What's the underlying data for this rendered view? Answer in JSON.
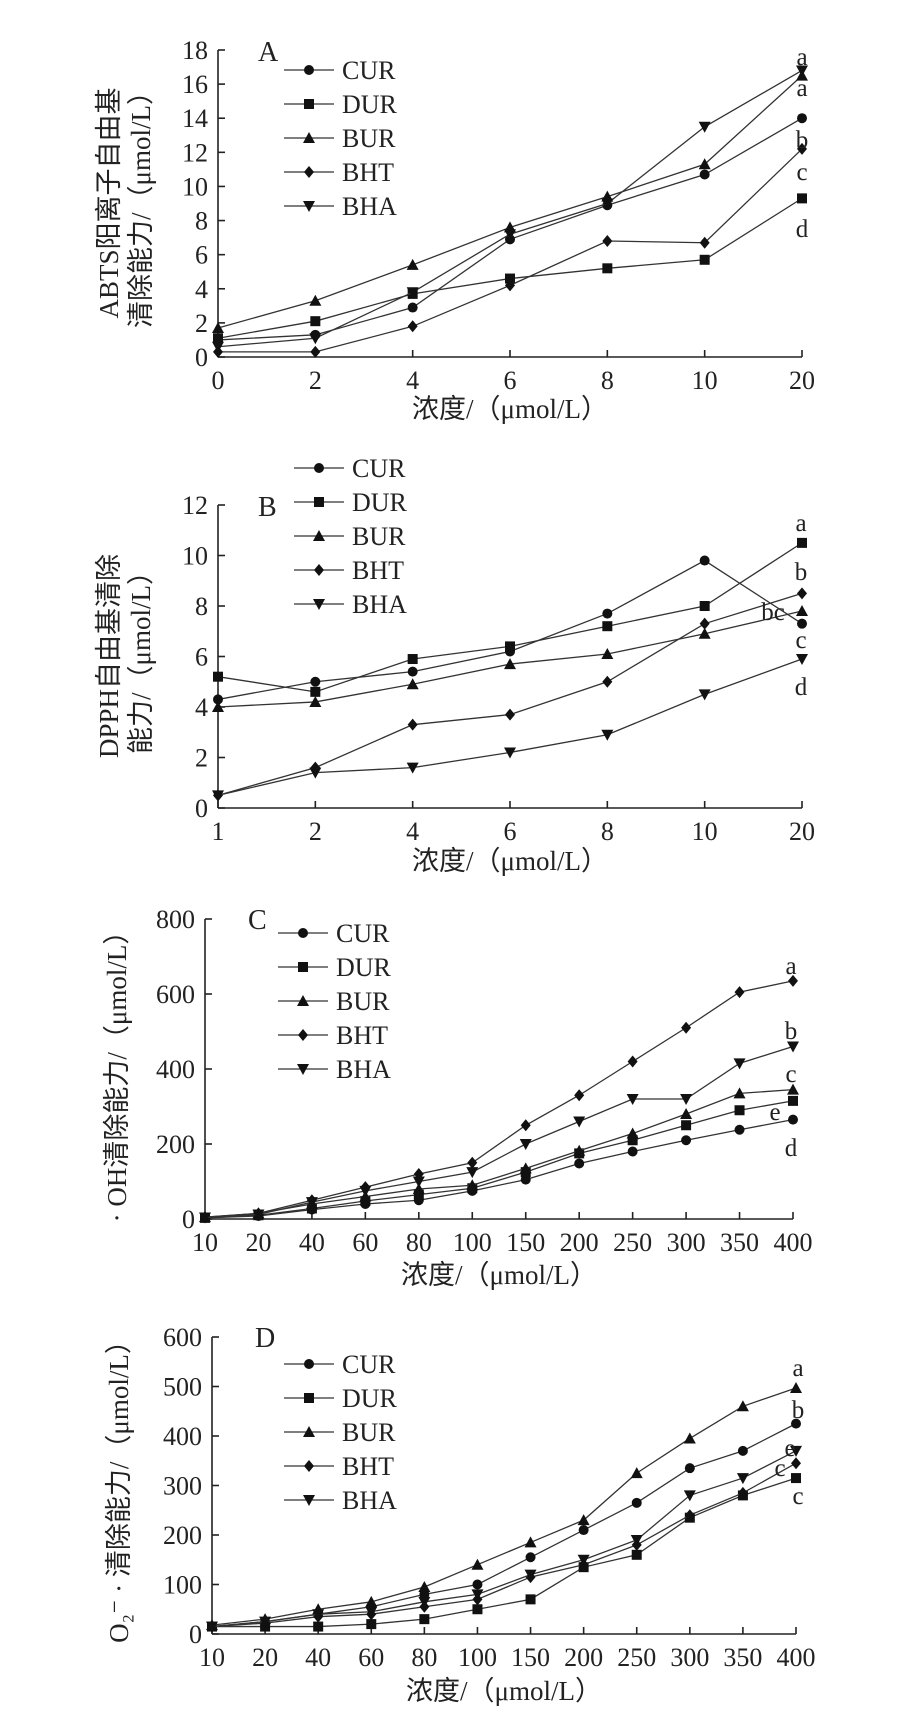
{
  "chart_data": [
    {
      "type": "line",
      "panel_label": "A",
      "categories": [
        "0",
        "2",
        "4",
        "6",
        "8",
        "10",
        "20"
      ],
      "ylim": [
        0,
        18
      ],
      "yticks": [
        0,
        2,
        4,
        6,
        8,
        10,
        12,
        14,
        16,
        18
      ],
      "xlabel": "浓度/（μmol/L）",
      "ylabel_line1": "ABTS阳离子自由基",
      "ylabel_line2": "清除能力/（μmol/L）",
      "legend": [
        "CUR",
        "DUR",
        "BUR",
        "BHT",
        "BHA"
      ],
      "series": [
        {
          "name": "CUR",
          "marker": "circle",
          "values": [
            1.0,
            1.3,
            2.9,
            6.9,
            8.9,
            10.7,
            14.0
          ]
        },
        {
          "name": "DUR",
          "marker": "square",
          "values": [
            1.1,
            2.1,
            3.7,
            4.6,
            5.2,
            5.7,
            9.3
          ]
        },
        {
          "name": "BUR",
          "marker": "triangle-up",
          "values": [
            1.7,
            3.3,
            5.4,
            7.6,
            9.4,
            11.3,
            16.5
          ]
        },
        {
          "name": "BHT",
          "marker": "diamond",
          "values": [
            0.3,
            0.3,
            1.8,
            4.2,
            6.8,
            6.7,
            12.2
          ]
        },
        {
          "name": "BHA",
          "marker": "triangle-down",
          "values": [
            0.6,
            1.1,
            3.8,
            7.2,
            9.0,
            13.5,
            16.8
          ]
        }
      ],
      "significance": [
        "a",
        "a",
        "b",
        "c",
        "d"
      ]
    },
    {
      "type": "line",
      "panel_label": "B",
      "categories": [
        "1",
        "2",
        "4",
        "6",
        "8",
        "10",
        "20"
      ],
      "ylim": [
        0,
        12
      ],
      "yticks": [
        0,
        2,
        4,
        6,
        8,
        10,
        12
      ],
      "xlabel": "浓度/（μmol/L）",
      "ylabel_line1": "DPPH自由基清除",
      "ylabel_line2": "能力/（μmol/L）",
      "legend": [
        "CUR",
        "DUR",
        "BUR",
        "BHT",
        "BHA"
      ],
      "series": [
        {
          "name": "CUR",
          "marker": "circle",
          "values": [
            4.3,
            5.0,
            5.4,
            6.2,
            7.7,
            9.8,
            7.3
          ]
        },
        {
          "name": "DUR",
          "marker": "square",
          "values": [
            5.2,
            4.6,
            5.9,
            6.4,
            7.2,
            8.0,
            10.5
          ]
        },
        {
          "name": "BUR",
          "marker": "triangle-up",
          "values": [
            4.0,
            4.2,
            4.9,
            5.7,
            6.1,
            6.9,
            7.8
          ]
        },
        {
          "name": "BHT",
          "marker": "diamond",
          "values": [
            0.5,
            1.6,
            3.3,
            3.7,
            5.0,
            7.3,
            8.5
          ]
        },
        {
          "name": "BHA",
          "marker": "triangle-down",
          "values": [
            0.5,
            1.4,
            1.6,
            2.2,
            2.9,
            4.5,
            5.9
          ]
        }
      ],
      "significance": [
        "a",
        "b",
        "bc",
        "c",
        "d"
      ]
    },
    {
      "type": "line",
      "panel_label": "C",
      "categories": [
        "10",
        "20",
        "40",
        "60",
        "80",
        "100",
        "150",
        "200",
        "250",
        "300",
        "350",
        "400"
      ],
      "ylim": [
        0,
        800
      ],
      "yticks": [
        0,
        200,
        400,
        600,
        800
      ],
      "xlabel": "浓度/（μmol/L）",
      "ylabel_line1": "· OH清除能力/（μmol/L）",
      "legend": [
        "CUR",
        "DUR",
        "BUR",
        "BHT",
        "BHA"
      ],
      "series": [
        {
          "name": "CUR",
          "marker": "circle",
          "values": [
            3,
            8,
            25,
            40,
            50,
            75,
            105,
            148,
            180,
            210,
            238,
            265
          ]
        },
        {
          "name": "DUR",
          "marker": "square",
          "values": [
            3,
            10,
            28,
            48,
            65,
            82,
            125,
            175,
            210,
            250,
            290,
            315
          ]
        },
        {
          "name": "BUR",
          "marker": "triangle-up",
          "values": [
            5,
            15,
            40,
            60,
            80,
            90,
            135,
            182,
            228,
            280,
            335,
            345
          ]
        },
        {
          "name": "BHT",
          "marker": "diamond",
          "values": [
            5,
            15,
            50,
            85,
            120,
            150,
            250,
            330,
            420,
            510,
            605,
            635
          ]
        },
        {
          "name": "BHA",
          "marker": "triangle-down",
          "values": [
            4,
            12,
            45,
            75,
            100,
            125,
            200,
            260,
            320,
            320,
            415,
            460
          ]
        }
      ],
      "significance": [
        "a",
        "b",
        "c",
        "e",
        "d"
      ]
    },
    {
      "type": "line",
      "panel_label": "D",
      "categories": [
        "10",
        "20",
        "40",
        "60",
        "80",
        "100",
        "150",
        "200",
        "250",
        "300",
        "350",
        "400"
      ],
      "ylim": [
        0,
        600
      ],
      "yticks": [
        0,
        100,
        200,
        300,
        400,
        500,
        600
      ],
      "xlabel": "浓度/（μmol/L）",
      "ylabel_line1": "O₂⁻ · 清除能力/（μmol/L）",
      "legend": [
        "CUR",
        "DUR",
        "BUR",
        "BHT",
        "BHA"
      ],
      "series": [
        {
          "name": "CUR",
          "marker": "circle",
          "values": [
            15,
            25,
            40,
            55,
            80,
            100,
            155,
            210,
            265,
            335,
            370,
            425
          ]
        },
        {
          "name": "DUR",
          "marker": "square",
          "values": [
            15,
            15,
            15,
            20,
            30,
            50,
            70,
            135,
            160,
            235,
            280,
            315
          ]
        },
        {
          "name": "BUR",
          "marker": "triangle-up",
          "values": [
            18,
            30,
            50,
            65,
            95,
            140,
            185,
            230,
            325,
            395,
            460,
            497
          ]
        },
        {
          "name": "BHT",
          "marker": "diamond",
          "values": [
            15,
            22,
            35,
            40,
            55,
            70,
            115,
            140,
            180,
            240,
            285,
            345
          ]
        },
        {
          "name": "BHA",
          "marker": "triangle-down",
          "values": [
            15,
            25,
            40,
            45,
            65,
            80,
            120,
            150,
            190,
            280,
            315,
            370
          ]
        }
      ],
      "significance": [
        "a",
        "b",
        "e",
        "c",
        "c"
      ]
    }
  ]
}
